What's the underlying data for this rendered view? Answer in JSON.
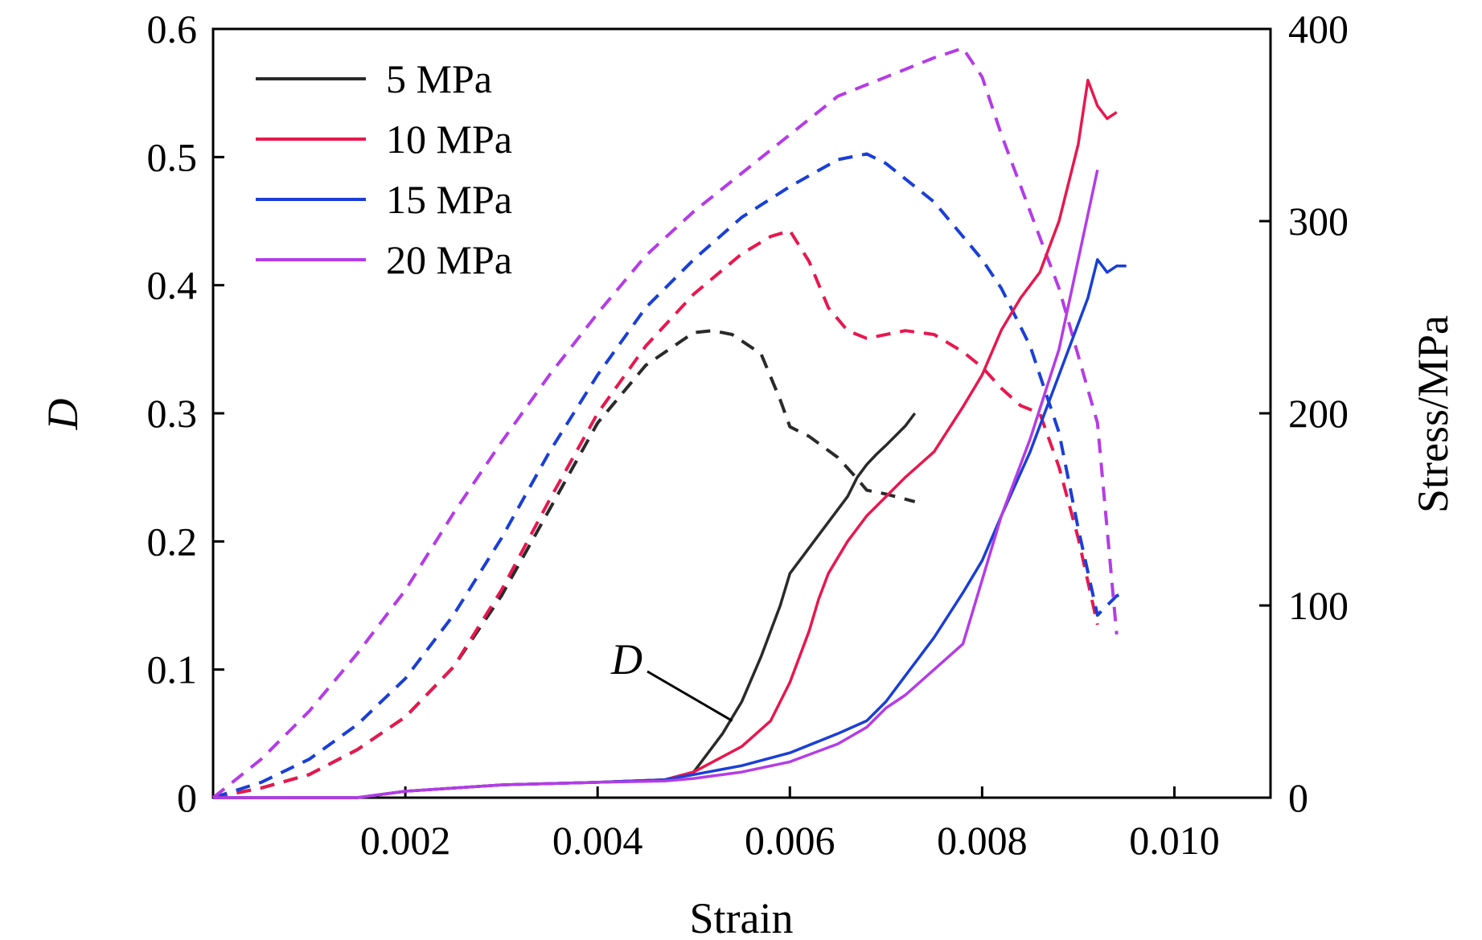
{
  "chart_data": {
    "type": "line",
    "title": "",
    "xlabel": "Strain",
    "ylabel_left": "D",
    "ylabel_right": "Stress/MPa",
    "xlim": [
      0,
      0.011
    ],
    "ylim_left": [
      0,
      0.6
    ],
    "ylim_right": [
      0,
      400
    ],
    "x_ticks": [
      0.002,
      0.004,
      0.006,
      0.008,
      0.01
    ],
    "x_tick_labels": [
      "0.002",
      "0.004",
      "0.006",
      "0.008",
      "0.010"
    ],
    "y_left_ticks": [
      0,
      0.1,
      0.2,
      0.3,
      0.4,
      0.5,
      0.6
    ],
    "y_left_tick_labels": [
      "0",
      "0.1",
      "0.2",
      "0.3",
      "0.4",
      "0.5",
      "0.6"
    ],
    "y_right_ticks": [
      0,
      100,
      200,
      300,
      400
    ],
    "y_right_tick_labels": [
      "0",
      "100",
      "200",
      "300",
      "400"
    ],
    "grid": false,
    "legend_position": "top-left",
    "annotation": {
      "text": "D",
      "points_to": [
        0.0054,
        0.06
      ]
    },
    "series": [
      {
        "name": "5 MPa",
        "color": "#2a2a2a",
        "damage": {
          "x": [
            0.0,
            0.0015,
            0.002,
            0.003,
            0.004,
            0.0047,
            0.005,
            0.0053,
            0.0055,
            0.0057,
            0.0059,
            0.006,
            0.0062,
            0.0064,
            0.0066,
            0.0067,
            0.0068,
            0.0069,
            0.007,
            0.0072,
            0.0073
          ],
          "y": [
            0.0,
            0.0,
            0.005,
            0.01,
            0.012,
            0.014,
            0.02,
            0.05,
            0.075,
            0.11,
            0.15,
            0.175,
            0.195,
            0.215,
            0.235,
            0.25,
            0.26,
            0.268,
            0.275,
            0.29,
            0.3
          ]
        },
        "stress": {
          "x": [
            0.0,
            0.0005,
            0.001,
            0.0015,
            0.002,
            0.0025,
            0.003,
            0.0035,
            0.004,
            0.0045,
            0.005,
            0.0052,
            0.0054,
            0.0057,
            0.0059,
            0.006,
            0.0062,
            0.0065,
            0.0067,
            0.0068,
            0.007,
            0.0073
          ],
          "y": [
            0,
            5,
            12,
            25,
            42,
            68,
            105,
            150,
            195,
            225,
            242,
            243,
            241,
            231,
            207,
            193,
            188,
            177,
            166,
            160,
            158,
            154
          ]
        }
      },
      {
        "name": "10 MPa",
        "color": "#e8174f",
        "damage": {
          "x": [
            0.0,
            0.0015,
            0.002,
            0.003,
            0.004,
            0.0047,
            0.005,
            0.0055,
            0.0058,
            0.006,
            0.0062,
            0.0063,
            0.0064,
            0.0066,
            0.0068,
            0.007,
            0.0072,
            0.0075,
            0.0078,
            0.008,
            0.0082,
            0.0084,
            0.0086,
            0.0088,
            0.009,
            0.0091,
            0.0092,
            0.0093,
            0.0094
          ],
          "y": [
            0.0,
            0.0,
            0.005,
            0.01,
            0.012,
            0.014,
            0.02,
            0.04,
            0.06,
            0.09,
            0.13,
            0.155,
            0.175,
            0.2,
            0.22,
            0.235,
            0.25,
            0.27,
            0.305,
            0.33,
            0.365,
            0.39,
            0.41,
            0.45,
            0.51,
            0.56,
            0.54,
            0.53,
            0.535
          ]
        },
        "stress": {
          "x": [
            0.0,
            0.0005,
            0.001,
            0.0015,
            0.002,
            0.0025,
            0.003,
            0.0035,
            0.004,
            0.0045,
            0.005,
            0.0055,
            0.0058,
            0.006,
            0.0062,
            0.0064,
            0.0066,
            0.0068,
            0.0072,
            0.0075,
            0.0078,
            0.008,
            0.0082,
            0.0084,
            0.0086,
            0.0088,
            0.009,
            0.0092
          ],
          "y": [
            0,
            5,
            12,
            25,
            42,
            68,
            108,
            155,
            200,
            235,
            262,
            283,
            292,
            295,
            279,
            255,
            243,
            239,
            243,
            241,
            232,
            224,
            213,
            204,
            200,
            172,
            135,
            90
          ]
        }
      },
      {
        "name": "15 MPa",
        "color": "#1a3fd6",
        "damage": {
          "x": [
            0.0,
            0.0015,
            0.002,
            0.003,
            0.004,
            0.0047,
            0.005,
            0.0055,
            0.006,
            0.0065,
            0.0068,
            0.007,
            0.0072,
            0.0075,
            0.0078,
            0.008,
            0.0082,
            0.0085,
            0.0088,
            0.009,
            0.0091,
            0.0092,
            0.0093,
            0.0094,
            0.0095
          ],
          "y": [
            0.0,
            0.0,
            0.005,
            0.01,
            0.012,
            0.014,
            0.018,
            0.025,
            0.035,
            0.05,
            0.06,
            0.075,
            0.095,
            0.125,
            0.16,
            0.185,
            0.22,
            0.27,
            0.33,
            0.37,
            0.39,
            0.42,
            0.41,
            0.415,
            0.415
          ]
        },
        "stress": {
          "x": [
            0.0,
            0.0005,
            0.001,
            0.0015,
            0.002,
            0.0025,
            0.003,
            0.0035,
            0.004,
            0.0045,
            0.005,
            0.0055,
            0.006,
            0.0065,
            0.0068,
            0.007,
            0.0075,
            0.008,
            0.0082,
            0.0085,
            0.0088,
            0.009,
            0.0092,
            0.0094,
            0.0095
          ],
          "y": [
            0,
            8,
            20,
            38,
            62,
            95,
            135,
            180,
            220,
            255,
            280,
            302,
            318,
            332,
            335,
            330,
            310,
            280,
            265,
            235,
            190,
            140,
            95,
            105,
            107
          ]
        }
      },
      {
        "name": "20 MPa",
        "color": "#b43ce6",
        "damage": {
          "x": [
            0.0,
            0.0015,
            0.002,
            0.003,
            0.004,
            0.0047,
            0.005,
            0.0055,
            0.006,
            0.0065,
            0.0068,
            0.007,
            0.0072,
            0.0075,
            0.0078,
            0.008,
            0.0082,
            0.0085,
            0.0088,
            0.009,
            0.0092
          ],
          "y": [
            0.0,
            0.0,
            0.005,
            0.01,
            0.012,
            0.013,
            0.015,
            0.02,
            0.028,
            0.042,
            0.055,
            0.07,
            0.08,
            0.1,
            0.12,
            0.17,
            0.22,
            0.28,
            0.35,
            0.42,
            0.49
          ]
        },
        "stress": {
          "x": [
            0.0,
            0.0005,
            0.001,
            0.0015,
            0.002,
            0.0025,
            0.003,
            0.0035,
            0.004,
            0.0045,
            0.005,
            0.0055,
            0.006,
            0.0065,
            0.007,
            0.0075,
            0.0078,
            0.008,
            0.0082,
            0.0085,
            0.0088,
            0.009,
            0.0092,
            0.0094
          ],
          "y": [
            0,
            20,
            45,
            75,
            108,
            148,
            185,
            220,
            252,
            282,
            305,
            325,
            345,
            365,
            375,
            385,
            390,
            375,
            345,
            305,
            265,
            230,
            195,
            85
          ]
        }
      }
    ]
  }
}
